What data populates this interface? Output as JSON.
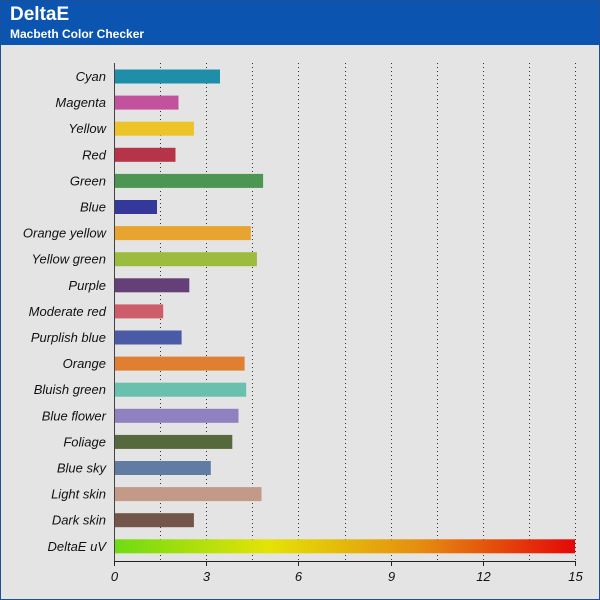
{
  "header": {
    "title": "DeltaE",
    "subtitle": "Macbeth Color Checker"
  },
  "colors": {
    "header_bg": "#0b55b1",
    "chart_bg": "#e4e4e4"
  },
  "chart_data": {
    "type": "bar",
    "orientation": "horizontal",
    "title": "DeltaE",
    "subtitle": "Macbeth Color Checker",
    "xlim": [
      0,
      15
    ],
    "x_ticks": [
      0,
      3,
      6,
      9,
      12,
      15
    ],
    "grid": true,
    "categories": [
      "Cyan",
      "Magenta",
      "Yellow",
      "Red",
      "Green",
      "Blue",
      "Orange yellow",
      "Yellow green",
      "Purple",
      "Moderate red",
      "Purplish blue",
      "Orange",
      "Bluish green",
      "Blue flower",
      "Foliage",
      "Blue sky",
      "Light skin",
      "Dark skin",
      "DeltaE uV"
    ],
    "values": [
      3.45,
      2.1,
      2.6,
      2.0,
      4.85,
      1.4,
      4.45,
      4.65,
      2.45,
      1.6,
      2.2,
      4.25,
      4.3,
      4.05,
      3.85,
      3.15,
      4.8,
      2.6,
      15
    ],
    "bar_colors": [
      "#1f8ea8",
      "#c2529d",
      "#ecc42a",
      "#b53448",
      "#4b9652",
      "#33389a",
      "#e8a430",
      "#9cbc40",
      "#643f78",
      "#cc5d69",
      "#4a5aa6",
      "#e07f32",
      "#69c0ad",
      "#8f80c0",
      "#56693d",
      "#627ba3",
      "#c39a88",
      "#735649",
      "gradient"
    ],
    "gradient_colors": [
      "#6fdb12",
      "#e4e306",
      "#e58c10",
      "#e40808"
    ]
  }
}
